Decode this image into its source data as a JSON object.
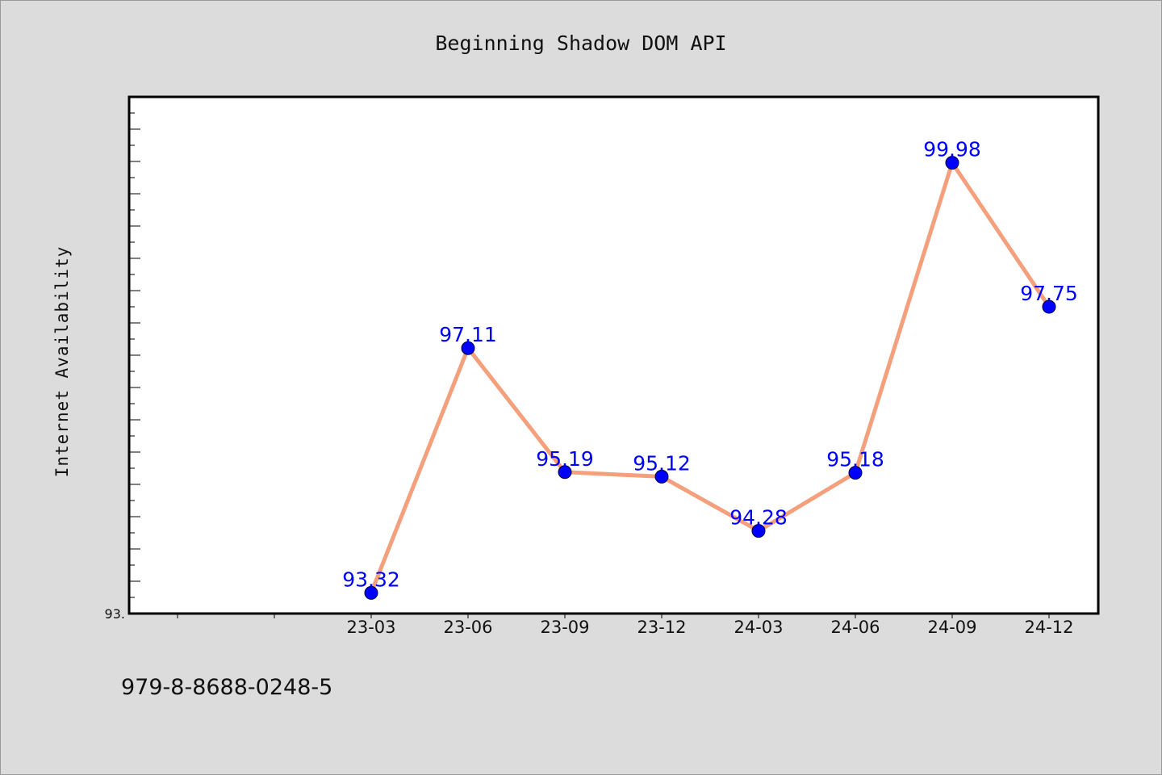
{
  "chart_data": {
    "type": "line",
    "title": "Beginning Shadow DOM API",
    "ylabel": "Internet Availability",
    "xlabel": "",
    "categories": [
      "23-03",
      "23-06",
      "23-09",
      "23-12",
      "24-03",
      "24-06",
      "24-09",
      "24-12"
    ],
    "series": [
      {
        "values": [
          93.32,
          97.11,
          95.19,
          95.12,
          94.28,
          95.18,
          99.98,
          97.75
        ],
        "labels": [
          "93.32",
          "97.11",
          "95.19",
          "95.12",
          "94.28",
          "95.18",
          "99.98",
          "97.75"
        ]
      }
    ],
    "y_tick_labels": [
      "93."
    ],
    "ylim": [
      93.0,
      101.0
    ],
    "grid": false,
    "line_color": "#f4a07c",
    "marker_color": "#0000ff",
    "label_color": "#0000ff"
  },
  "footer": {
    "isbn": "979-8-8688-0248-5"
  }
}
